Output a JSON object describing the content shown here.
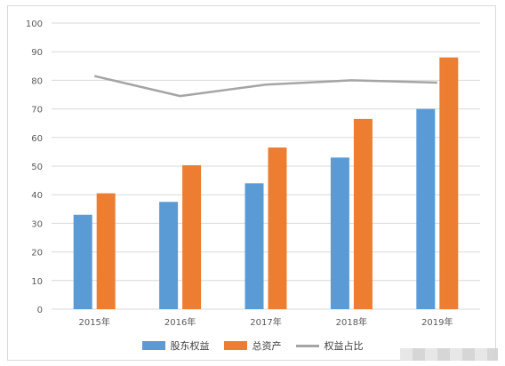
{
  "chart_data": {
    "type": "bar",
    "categories": [
      "2015年",
      "2016年",
      "2017年",
      "2018年",
      "2019年"
    ],
    "series": [
      {
        "name": "股东权益",
        "kind": "bar",
        "color": "#5b9bd5",
        "values": [
          33,
          37.5,
          44,
          53,
          70
        ]
      },
      {
        "name": "总资产",
        "kind": "bar",
        "color": "#ed7d31",
        "values": [
          40.5,
          50.3,
          56.5,
          66.5,
          88
        ]
      },
      {
        "name": "权益占比",
        "kind": "line",
        "color": "#a5a5a5",
        "values": [
          81.5,
          74.5,
          78.5,
          80,
          79.2
        ]
      }
    ],
    "ylim": [
      0,
      100
    ],
    "yticks": [
      0,
      10,
      20,
      30,
      40,
      50,
      60,
      70,
      80,
      90,
      100
    ],
    "grid": true,
    "legend_position": "bottom"
  }
}
